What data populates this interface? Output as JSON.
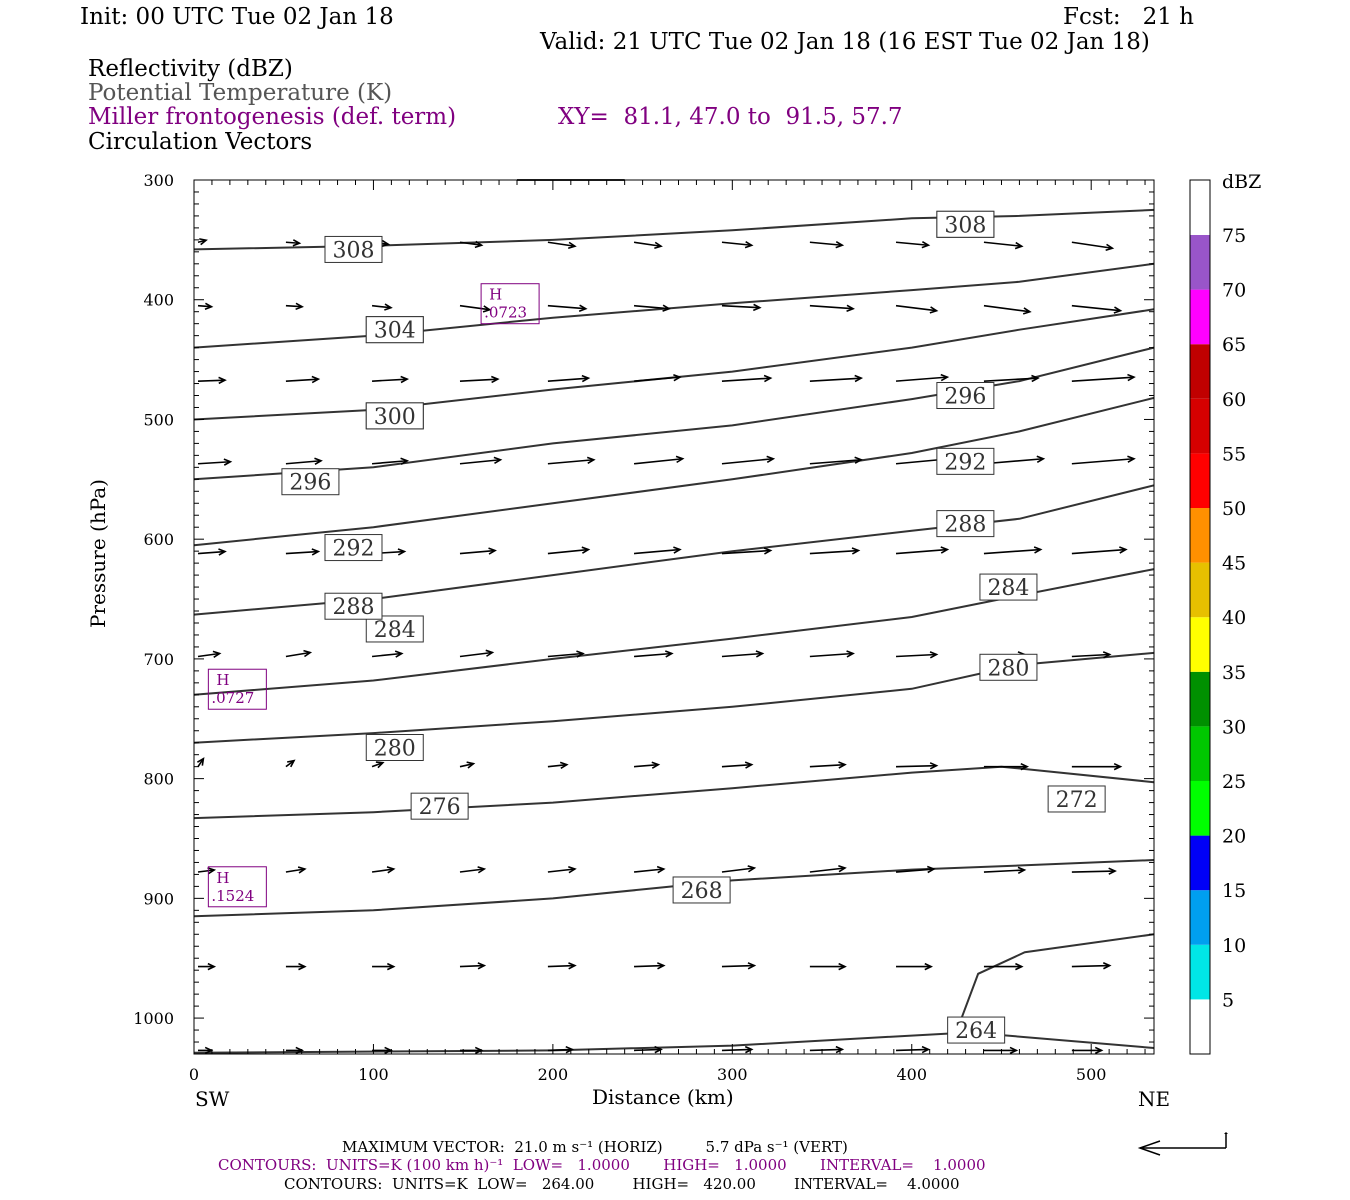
{
  "header": {
    "init": "Init: 00 UTC Tue 02 Jan 18",
    "fcst": "Fcst:   21 h",
    "valid": "Valid: 21 UTC Tue 02 Jan 18 (16 EST Tue 02 Jan 18)"
  },
  "fields": {
    "reflectivity": "Reflectivity (dBZ)",
    "theta": "Potential Temperature (K)",
    "frontogenesis": "Miller frontogenesis (def. term)",
    "xy": "XY=  81.1, 47.0 to  91.5, 57.7",
    "circulation": "Circulation Vectors"
  },
  "axes": {
    "ylabel": "Pressure (hPa)",
    "xlabel": "Distance (km)",
    "sw": "SW",
    "ne": "NE"
  },
  "colorbar": {
    "title": "dBZ",
    "labels": [
      "5",
      "10",
      "15",
      "20",
      "25",
      "30",
      "35",
      "40",
      "45",
      "50",
      "55",
      "60",
      "65",
      "70",
      "75"
    ],
    "colors": [
      "#00e6e6",
      "#009fef",
      "#0000f6",
      "#00ff00",
      "#00c800",
      "#009000",
      "#ffff00",
      "#e7c000",
      "#ff9000",
      "#ff0000",
      "#d60000",
      "#c00000",
      "#ff00ff",
      "#9955c9",
      "#ffffff"
    ]
  },
  "footer": {
    "max_vector": "MAXIMUM VECTOR:  21.0 m s⁻¹ (HORIZ)         5.7 dPa s⁻¹ (VERT)",
    "contours_purple": "CONTOURS:  UNITS=K (100 km h)⁻¹  LOW=   1.0000       HIGH=   1.0000       INTERVAL=    1.0000",
    "contours_black": "CONTOURS:  UNITS=K  LOW=   264.00        HIGH=   420.00        INTERVAL=    4.0000"
  },
  "chart_data": {
    "type": "line",
    "title": "",
    "xlabel": "Distance (km)",
    "ylabel": "Pressure (hPa)",
    "xlim": [
      0,
      535
    ],
    "ylim": [
      1030,
      300
    ],
    "x_ticks": [
      0,
      100,
      200,
      300,
      400,
      500
    ],
    "y_ticks": [
      300,
      400,
      500,
      600,
      700,
      800,
      900,
      1000
    ],
    "isentropes": [
      {
        "name": "264",
        "points": [
          [
            0,
            1029
          ],
          [
            200,
            1027
          ],
          [
            300,
            1023
          ],
          [
            420,
            1013
          ],
          [
            440,
            1013
          ],
          [
            535,
            1025
          ]
        ],
        "labels": [
          [
            420,
            1010
          ]
        ]
      },
      {
        "name": "268",
        "points": [
          [
            0,
            915
          ],
          [
            100,
            910
          ],
          [
            200,
            900
          ],
          [
            300,
            885
          ],
          [
            400,
            876
          ],
          [
            470,
            872
          ],
          [
            535,
            868
          ]
        ],
        "labels": [
          [
            267,
            893
          ]
        ]
      },
      {
        "name": "272",
        "points": [
          [
            0,
            833
          ],
          [
            100,
            828
          ],
          [
            200,
            820
          ],
          [
            300,
            808
          ],
          [
            400,
            795
          ],
          [
            450,
            790
          ],
          [
            535,
            803
          ]
        ],
        "labels": [
          [
            476,
            817
          ]
        ]
      },
      {
        "name": "276",
        "points": [
          [
            0,
            770
          ],
          [
            100,
            762
          ],
          [
            200,
            752
          ],
          [
            300,
            740
          ],
          [
            400,
            725
          ],
          [
            460,
            705
          ],
          [
            535,
            695
          ]
        ],
        "labels": [
          [
            121,
            823
          ]
        ]
      },
      {
        "name": "280",
        "points": [
          [
            0,
            730
          ],
          [
            100,
            718
          ],
          [
            200,
            700
          ],
          [
            300,
            683
          ],
          [
            400,
            665
          ],
          [
            450,
            650
          ],
          [
            535,
            625
          ]
        ],
        "labels": [
          [
            96,
            774
          ]
        ]
      },
      {
        "name": "284",
        "points": [
          [
            0,
            663
          ],
          [
            100,
            650
          ],
          [
            200,
            630
          ],
          [
            300,
            610
          ],
          [
            400,
            593
          ],
          [
            460,
            583
          ],
          [
            535,
            555
          ]
        ],
        "labels": [
          [
            96,
            675
          ]
        ]
      },
      {
        "name": "288",
        "points": [
          [
            0,
            605
          ],
          [
            100,
            590
          ],
          [
            200,
            570
          ],
          [
            300,
            550
          ],
          [
            400,
            528
          ],
          [
            460,
            510
          ],
          [
            535,
            482
          ]
        ],
        "labels": [
          [
            73,
            656
          ]
        ]
      },
      {
        "name": "292",
        "points": [
          [
            0,
            550
          ],
          [
            100,
            540
          ],
          [
            200,
            520
          ],
          [
            300,
            505
          ],
          [
            400,
            483
          ],
          [
            460,
            468
          ],
          [
            535,
            440
          ]
        ],
        "labels": [
          [
            73,
            607
          ]
        ]
      },
      {
        "name": "296",
        "points": [
          [
            0,
            500
          ],
          [
            100,
            492
          ],
          [
            200,
            475
          ],
          [
            300,
            460
          ],
          [
            400,
            440
          ],
          [
            460,
            425
          ],
          [
            535,
            408
          ]
        ],
        "labels": [
          [
            49,
            552
          ]
        ]
      },
      {
        "name": "300",
        "points": [
          [
            0,
            440
          ],
          [
            100,
            430
          ],
          [
            200,
            415
          ],
          [
            300,
            403
          ],
          [
            400,
            392
          ],
          [
            460,
            385
          ],
          [
            535,
            370
          ]
        ],
        "labels": [
          [
            96,
            497
          ]
        ]
      },
      {
        "name": "304",
        "points": [
          [
            0,
            358
          ],
          [
            100,
            355
          ],
          [
            200,
            350
          ],
          [
            300,
            342
          ],
          [
            400,
            332
          ],
          [
            460,
            330
          ],
          [
            535,
            325
          ]
        ],
        "labels": [
          [
            96,
            425
          ]
        ]
      },
      {
        "name": "308",
        "points": [
          [
            180,
            300
          ],
          [
            240,
            300
          ]
        ],
        "labels": [
          [
            73,
            358
          ],
          [
            414,
            337
          ]
        ]
      }
    ],
    "theta_labels_extra": [
      {
        "name": "308",
        "at": [
          414,
          337
        ]
      },
      {
        "name": "304",
        "at": [
          96,
          425
        ]
      },
      {
        "name": "300",
        "at": [
          96,
          497
        ]
      },
      {
        "name": "296",
        "at": [
          414,
          480
        ]
      },
      {
        "name": "292",
        "at": [
          414,
          535
        ]
      },
      {
        "name": "288",
        "at": [
          414,
          587
        ]
      },
      {
        "name": "284",
        "at": [
          438,
          640
        ]
      },
      {
        "name": "280",
        "at": [
          438,
          707
        ]
      }
    ],
    "frontogenesis_maxima": [
      {
        "label": "H",
        "value": ".0723",
        "at": [
          160,
          405
        ]
      },
      {
        "label": "H",
        "value": ".0727",
        "at": [
          8,
          727
        ]
      },
      {
        "label": "H",
        "value": ".1524",
        "at": [
          8,
          892
        ]
      }
    ]
  }
}
